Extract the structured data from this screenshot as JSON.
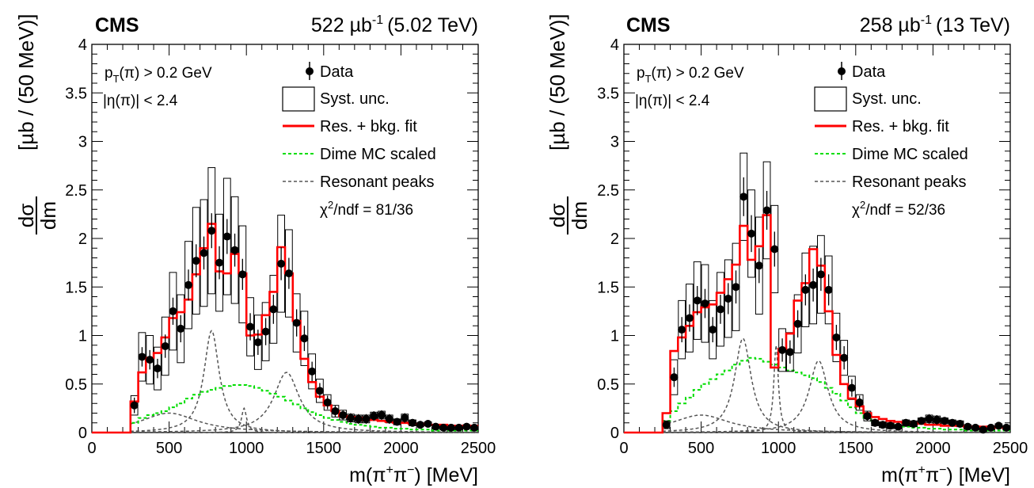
{
  "figure": {
    "panels": [
      {
        "experiment": "CMS",
        "luminosity": "522 µb",
        "lumi_exp": "-1",
        "energy": "(5.02 TeV)",
        "cut_pt": "p",
        "cut_pt_sub": "T",
        "cut_pt_rest": "(π) > 0.2 GeV",
        "cut_eta": "|η(π)| < 2.4",
        "chi2_sym": "χ",
        "chi2_exp": "2",
        "chi2_rest": "/ndf = 81/36"
      },
      {
        "experiment": "CMS",
        "luminosity": "258 µb",
        "lumi_exp": "-1",
        "energy": "(13 TeV)",
        "cut_pt": "p",
        "cut_pt_sub": "T",
        "cut_pt_rest": "(π) > 0.2 GeV",
        "cut_eta": "|η(π)| < 2.4",
        "chi2_sym": "χ",
        "chi2_exp": "2",
        "chi2_rest": "/ndf = 52/36"
      }
    ],
    "legend": {
      "data": "Data",
      "syst": "Syst. unc.",
      "fit": "Res. + bkg. fit",
      "dime": "Dime MC scaled",
      "peaks": "Resonant peaks"
    },
    "ylabel": {
      "num": "dσ",
      "den": "dm",
      "rest": "[µb / (50 MeV)]"
    },
    "xlabel": {
      "pre": "m(π",
      "sup1": "+",
      "mid": "π",
      "sup2": "−",
      "post": ") [MeV]"
    },
    "colors": {
      "data": "#000000",
      "syst": "#000000",
      "fit": "#ff0000",
      "dime": "#00dd00",
      "peaks": "#555555"
    }
  },
  "chart_data": [
    {
      "type": "bar",
      "xlim": [
        0,
        2500
      ],
      "ylim": [
        0,
        4
      ],
      "x_ticks": [
        0,
        500,
        1000,
        1500,
        2000,
        2500
      ],
      "y_ticks": [
        0,
        0.5,
        1,
        1.5,
        2,
        2.5,
        3,
        3.5,
        4
      ],
      "bin_width": 50,
      "bin_edges_start": 250,
      "data": [
        0.28,
        0.78,
        0.75,
        0.66,
        0.89,
        1.25,
        1.07,
        1.52,
        1.77,
        1.85,
        2.08,
        1.75,
        2.02,
        1.88,
        1.63,
        1.09,
        0.93,
        1.04,
        1.27,
        1.74,
        1.64,
        1.13,
        0.97,
        0.63,
        0.43,
        0.31,
        0.22,
        0.18,
        0.15,
        0.14,
        0.14,
        0.17,
        0.18,
        0.14,
        0.11,
        0.15,
        0.1,
        0.08,
        0.09,
        0.06,
        0.05,
        0.05,
        0.05,
        0.06,
        0.05
      ],
      "data_err": [
        0.08,
        0.1,
        0.1,
        0.1,
        0.12,
        0.14,
        0.14,
        0.16,
        0.17,
        0.17,
        0.18,
        0.17,
        0.18,
        0.17,
        0.16,
        0.14,
        0.13,
        0.14,
        0.15,
        0.17,
        0.16,
        0.14,
        0.13,
        0.1,
        0.08,
        0.07,
        0.06,
        0.05,
        0.05,
        0.05,
        0.05,
        0.05,
        0.05,
        0.05,
        0.04,
        0.05,
        0.04,
        0.04,
        0.04,
        0.03,
        0.03,
        0.03,
        0.03,
        0.03,
        0.03
      ],
      "syst": [
        0.1,
        0.25,
        0.25,
        0.22,
        0.3,
        0.4,
        0.35,
        0.45,
        0.55,
        0.55,
        0.65,
        0.5,
        0.6,
        0.55,
        0.5,
        0.3,
        0.28,
        0.3,
        0.35,
        0.5,
        0.45,
        0.3,
        0.28,
        0.18,
        0.12,
        0.08,
        0.06,
        0.05,
        0.04,
        0.04,
        0.04,
        0.04,
        0.04,
        0.04,
        0.03,
        0.04,
        0.03,
        0.02,
        0.02,
        0.02,
        0.02,
        0.02,
        0.02,
        0.02,
        0.02
      ],
      "fit": [
        0.32,
        0.62,
        0.77,
        0.82,
        0.98,
        1.18,
        1.24,
        1.37,
        1.63,
        1.9,
        2.15,
        1.66,
        1.64,
        1.84,
        1.64,
        1.0,
        1.01,
        1.21,
        1.45,
        1.91,
        1.64,
        1.15,
        0.76,
        0.52,
        0.37,
        0.28,
        0.22,
        0.17,
        0.16,
        0.15,
        0.13,
        0.13,
        0.12,
        0.11,
        0.1,
        0.1,
        0.09,
        0.09,
        0.08,
        0.08,
        0.08,
        0.07,
        0.07,
        0.07,
        0.07
      ],
      "dime": [
        0.1,
        0.15,
        0.18,
        0.2,
        0.22,
        0.26,
        0.3,
        0.35,
        0.39,
        0.42,
        0.44,
        0.46,
        0.48,
        0.49,
        0.49,
        0.48,
        0.46,
        0.43,
        0.4,
        0.37,
        0.33,
        0.29,
        0.25,
        0.21,
        0.18,
        0.15,
        0.13,
        0.11,
        0.09,
        0.08,
        0.07,
        0.06,
        0.05,
        0.05,
        0.04,
        0.04,
        0.03,
        0.03,
        0.03,
        0.02,
        0.02,
        0.02,
        0.02,
        0.02,
        0.02
      ],
      "peaks": [
        {
          "mass": 500,
          "width": 450,
          "height": 0.2
        },
        {
          "mass": 775,
          "width": 120,
          "height": 1.05
        },
        {
          "mass": 985,
          "width": 40,
          "height": 0.25
        },
        {
          "mass": 1260,
          "width": 200,
          "height": 0.62
        }
      ]
    },
    {
      "type": "bar",
      "xlim": [
        0,
        2500
      ],
      "ylim": [
        0,
        4
      ],
      "x_ticks": [
        0,
        500,
        1000,
        1500,
        2000,
        2500
      ],
      "y_ticks": [
        0,
        0.5,
        1,
        1.5,
        2,
        2.5,
        3,
        3.5,
        4
      ],
      "bin_width": 50,
      "bin_edges_start": 250,
      "data": [
        0.08,
        0.57,
        1.06,
        1.18,
        1.36,
        1.33,
        1.06,
        1.27,
        1.38,
        1.5,
        2.43,
        2.05,
        1.72,
        2.29,
        1.89,
        0.85,
        0.83,
        1.12,
        1.47,
        1.52,
        1.63,
        1.47,
        0.98,
        0.77,
        0.46,
        0.31,
        0.17,
        0.1,
        0.08,
        0.07,
        0.06,
        0.1,
        0.09,
        0.12,
        0.14,
        0.13,
        0.12,
        0.1,
        0.09,
        0.06,
        0.05,
        0.03,
        0.05,
        0.07,
        0.05
      ],
      "data_err": [
        0.04,
        0.1,
        0.13,
        0.14,
        0.15,
        0.15,
        0.13,
        0.15,
        0.16,
        0.17,
        0.2,
        0.19,
        0.18,
        0.2,
        0.18,
        0.12,
        0.12,
        0.14,
        0.16,
        0.17,
        0.17,
        0.16,
        0.13,
        0.12,
        0.09,
        0.07,
        0.05,
        0.04,
        0.04,
        0.04,
        0.04,
        0.04,
        0.04,
        0.04,
        0.05,
        0.05,
        0.04,
        0.04,
        0.04,
        0.03,
        0.03,
        0.02,
        0.03,
        0.03,
        0.03
      ],
      "syst": [
        0.04,
        0.18,
        0.3,
        0.35,
        0.4,
        0.4,
        0.3,
        0.38,
        0.4,
        0.45,
        0.45,
        0.45,
        0.5,
        0.5,
        0.45,
        0.22,
        0.2,
        0.3,
        0.38,
        0.4,
        0.4,
        0.35,
        0.25,
        0.18,
        0.12,
        0.08,
        0.05,
        0.03,
        0.03,
        0.03,
        0.02,
        0.03,
        0.03,
        0.03,
        0.04,
        0.04,
        0.03,
        0.03,
        0.03,
        0.02,
        0.02,
        0.02,
        0.02,
        0.02,
        0.02
      ],
      "fit": [
        0.2,
        0.84,
        0.98,
        1.1,
        1.24,
        1.29,
        1.32,
        1.44,
        1.58,
        1.73,
        2.13,
        1.78,
        1.92,
        2.24,
        0.67,
        0.86,
        1.02,
        1.36,
        1.54,
        1.89,
        1.72,
        1.25,
        0.8,
        0.5,
        0.35,
        0.27,
        0.2,
        0.16,
        0.14,
        0.12,
        0.11,
        0.1,
        0.1,
        0.09,
        0.08,
        0.08,
        0.07,
        0.07,
        0.07,
        0.06,
        0.06,
        0.06,
        0.06,
        0.05,
        0.05
      ],
      "dime": [
        0.12,
        0.22,
        0.3,
        0.36,
        0.44,
        0.5,
        0.55,
        0.6,
        0.64,
        0.7,
        0.74,
        0.77,
        0.76,
        0.73,
        0.7,
        0.67,
        0.64,
        0.62,
        0.59,
        0.56,
        0.52,
        0.46,
        0.4,
        0.33,
        0.26,
        0.2,
        0.15,
        0.12,
        0.1,
        0.08,
        0.07,
        0.06,
        0.05,
        0.05,
        0.04,
        0.04,
        0.03,
        0.03,
        0.03,
        0.02,
        0.02,
        0.02,
        0.02,
        0.02,
        0.02
      ],
      "peaks": [
        {
          "mass": 500,
          "width": 450,
          "height": 0.18
        },
        {
          "mass": 770,
          "width": 130,
          "height": 0.97
        },
        {
          "mass": 985,
          "width": 35,
          "height": 0.9
        },
        {
          "mass": 1260,
          "width": 150,
          "height": 0.74
        }
      ]
    }
  ]
}
